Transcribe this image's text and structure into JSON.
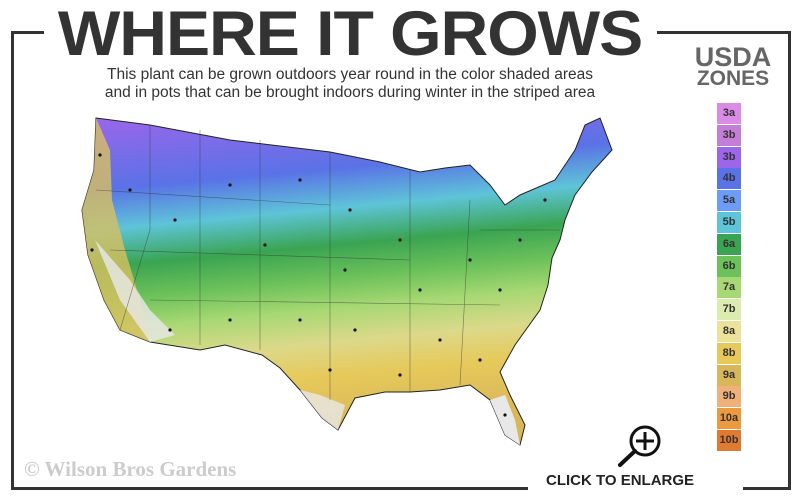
{
  "header": {
    "title": "WHERE IT GROWS",
    "subtitle_line1": "This plant can be grown outdoors year round in the color shaded areas",
    "subtitle_line2": "and in pots that can be brought indoors during winter in the striped area"
  },
  "legend": {
    "title_line1": "USDA",
    "title_line2": "ZONES",
    "zones": [
      {
        "label": "3a",
        "color": "#d98be6"
      },
      {
        "label": "3b",
        "color": "#c47ed8"
      },
      {
        "label": "3b",
        "color": "#9b66ea"
      },
      {
        "label": "4b",
        "color": "#5a72e6"
      },
      {
        "label": "5a",
        "color": "#6c9cf5"
      },
      {
        "label": "5b",
        "color": "#5ec4d8"
      },
      {
        "label": "6a",
        "color": "#3aa452"
      },
      {
        "label": "6b",
        "color": "#6cc15a"
      },
      {
        "label": "7a",
        "color": "#a7d873"
      },
      {
        "label": "7b",
        "color": "#dcecb0"
      },
      {
        "label": "8a",
        "color": "#ece29a"
      },
      {
        "label": "8b",
        "color": "#e6c95a"
      },
      {
        "label": "9a",
        "color": "#d8b65a"
      },
      {
        "label": "9b",
        "color": "#efb07a"
      },
      {
        "label": "10a",
        "color": "#ec9a3e"
      },
      {
        "label": "10b",
        "color": "#e07a30"
      }
    ]
  },
  "footer": {
    "copyright": "© Wilson Bros Gardens",
    "enlarge_label": "CLICK TO ENLARGE"
  },
  "icons": {
    "enlarge": "magnifier-plus-icon"
  }
}
